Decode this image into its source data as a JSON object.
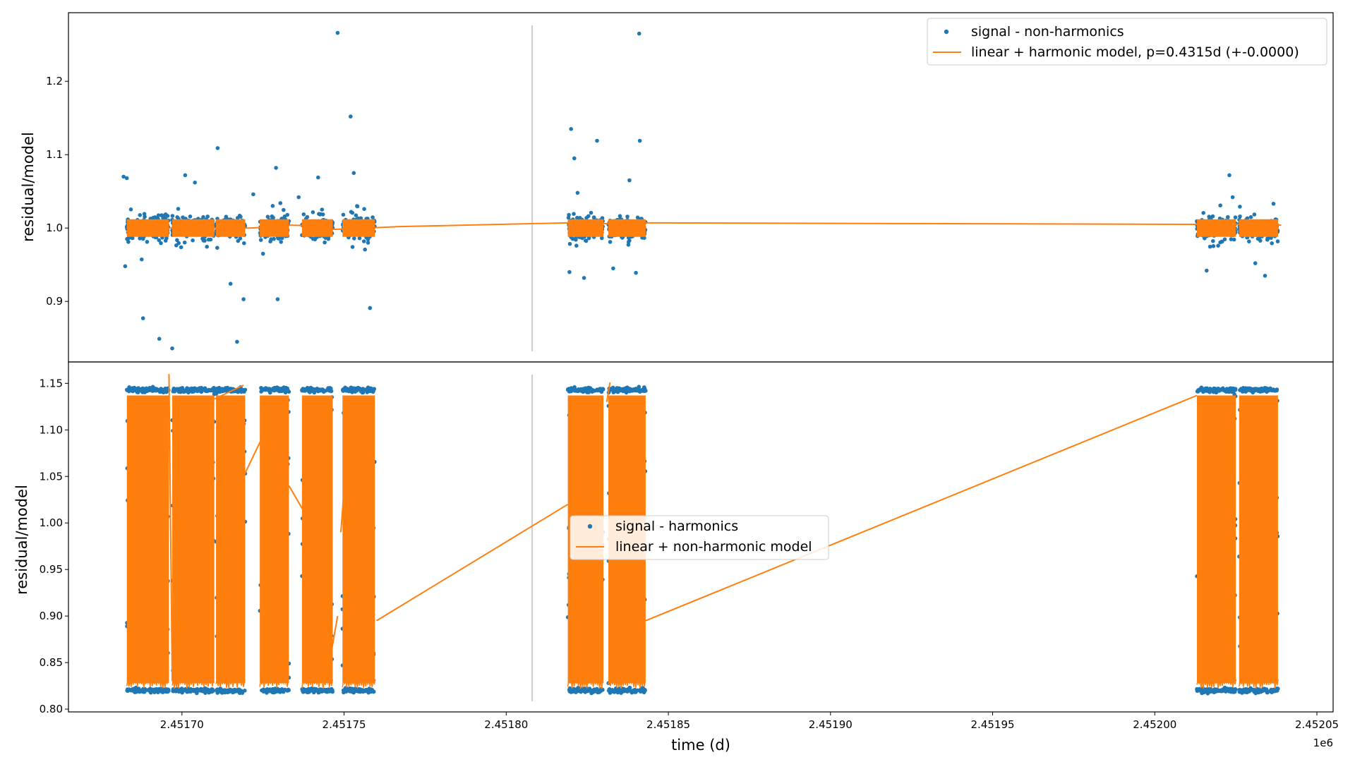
{
  "figure": {
    "xlabel": "time (d)",
    "x_offset_label": "1e6"
  },
  "chart_data": [
    {
      "type": "scatter",
      "ylabel": "residual/model",
      "xlim": [
        2451665,
        2452055
      ],
      "ylim": [
        0.8175,
        1.2935
      ],
      "yticks": [
        0.9,
        1.0,
        1.1,
        1.2
      ],
      "ytick_labels": [
        "0.9",
        "1.0",
        "1.1",
        "1.2"
      ],
      "grid": false,
      "legend_position": "upper right",
      "vline_x": 2451808,
      "series": [
        {
          "name": "signal - non-harmonics",
          "kind": "scatter",
          "color": "#1f77b4",
          "baseline": 1.0,
          "band": 0.017,
          "outliers": [
            [
              2451682,
              1.07
            ],
            [
              2451683,
              1.068
            ],
            [
              2451682.5,
              0.948
            ],
            [
              2451688,
              0.877
            ],
            [
              2451693,
              0.849
            ],
            [
              2451697,
              0.836
            ],
            [
              2451701,
              1.072
            ],
            [
              2451704,
              1.062
            ],
            [
              2451711,
              1.109
            ],
            [
              2451715,
              0.924
            ],
            [
              2451717,
              0.845
            ],
            [
              2451719,
              0.903
            ],
            [
              2451722,
              1.046
            ],
            [
              2451725,
              0.965
            ],
            [
              2451729,
              1.082
            ],
            [
              2451729.5,
              0.903
            ],
            [
              2451736,
              1.042
            ],
            [
              2451742,
              1.069
            ],
            [
              2451754,
              1.03
            ],
            [
              2451748,
              1.266
            ],
            [
              2451752,
              1.152
            ],
            [
              2451753,
              1.075
            ],
            [
              2451758,
              0.891
            ],
            [
              2451820,
              1.135
            ],
            [
              2451821,
              1.095
            ],
            [
              2451822,
              1.048
            ],
            [
              2451824,
              0.932
            ],
            [
              2451819.5,
              0.94
            ],
            [
              2451828,
              1.119
            ],
            [
              2451833,
              0.945
            ],
            [
              2451838,
              1.065
            ],
            [
              2451840,
              0.939
            ],
            [
              2451841,
              1.265
            ],
            [
              2451841.2,
              1.119
            ],
            [
              2452016,
              0.942
            ],
            [
              2452023,
              1.072
            ],
            [
              2452024,
              1.042
            ],
            [
              2452031,
              0.952
            ],
            [
              2452034,
              0.935
            ]
          ]
        },
        {
          "name": "linear + harmonic model, p=0.4315d (+-0.0000)",
          "kind": "line",
          "color": "#ff7f0e",
          "x": [
            2451683,
            2451696,
            2451697,
            2451709,
            2451710,
            2451719,
            2451721,
            2451731,
            2451733,
            2451742,
            2451744,
            2451755,
            2451757,
            2451767,
            2451819,
            2451831,
            2451833,
            2451845,
            2452014,
            2452026,
            2452027,
            2452039
          ],
          "y": [
            1.0,
            1.0,
            1.0,
            1.0,
            1.0,
            1.0,
            1.0,
            1.002,
            1.004,
            1.003,
            0.998,
            0.999,
            1.0,
            1.002,
            1.007,
            1.006,
            1.007,
            1.007,
            1.005,
            1.005,
            1.005,
            1.004
          ]
        }
      ],
      "segments": [
        [
          2451683,
          2451696
        ],
        [
          2451697,
          2451710
        ],
        [
          2451710.5,
          2451719.5
        ],
        [
          2451724,
          2451733
        ],
        [
          2451737,
          2451746.5
        ],
        [
          2451749.5,
          2451759.5
        ],
        [
          2451819,
          2451830
        ],
        [
          2451831.5,
          2451843
        ],
        [
          2452013,
          2452025
        ],
        [
          2452026,
          2452038
        ]
      ]
    },
    {
      "type": "scatter",
      "ylabel": "residual/model",
      "xlim": [
        2451665,
        2452055
      ],
      "ylim": [
        0.797,
        1.173
      ],
      "yticks": [
        0.8,
        0.85,
        0.9,
        0.95,
        1.0,
        1.05,
        1.1,
        1.15
      ],
      "ytick_labels": [
        "0.80",
        "0.85",
        "0.90",
        "0.95",
        "1.00",
        "1.05",
        "1.10",
        "1.15"
      ],
      "xticks": [
        2451700,
        2451750,
        2451800,
        2451850,
        2451900,
        2451950,
        2452000,
        2452050
      ],
      "xtick_labels": [
        "2.45170",
        "2.45175",
        "2.45180",
        "2.45185",
        "2.45190",
        "2.45195",
        "2.45200",
        "2.45205"
      ],
      "grid": false,
      "legend_position": "center",
      "vline_x": 2451808,
      "series": [
        {
          "name": "signal - harmonics",
          "kind": "scatter",
          "color": "#1f77b4",
          "band_low": 0.82,
          "band_high": 1.143
        },
        {
          "name": "linear + non-harmonic model",
          "kind": "line",
          "color": "#ff7f0e",
          "band_low": 0.828,
          "band_high": 1.137,
          "connectors": [
            [
              2451696,
              1.16,
              2451697,
              0.83
            ],
            [
              2451708,
              1.13,
              2451719,
              1.148
            ],
            [
              2451719,
              1.05,
              2451730,
              1.13
            ],
            [
              2451733,
              1.04,
              2451743,
              0.98
            ],
            [
              2451745,
              0.84,
              2451748,
              0.9
            ],
            [
              2451749,
              0.99,
              2451752,
              1.13
            ],
            [
              2451760,
              0.895,
              2451819,
              1.02
            ],
            [
              2451831,
              1.13,
              2451832,
              1.151
            ],
            [
              2451843,
              0.895,
              2452013,
              1.137
            ]
          ]
        }
      ],
      "segments": [
        [
          2451683,
          2451696
        ],
        [
          2451697,
          2451710
        ],
        [
          2451710.5,
          2451719.5
        ],
        [
          2451724,
          2451733
        ],
        [
          2451737,
          2451746.5
        ],
        [
          2451749.5,
          2451759.5
        ],
        [
          2451819,
          2451830
        ],
        [
          2451831.5,
          2451843
        ],
        [
          2452013,
          2452025
        ],
        [
          2452026,
          2452038
        ]
      ]
    }
  ]
}
